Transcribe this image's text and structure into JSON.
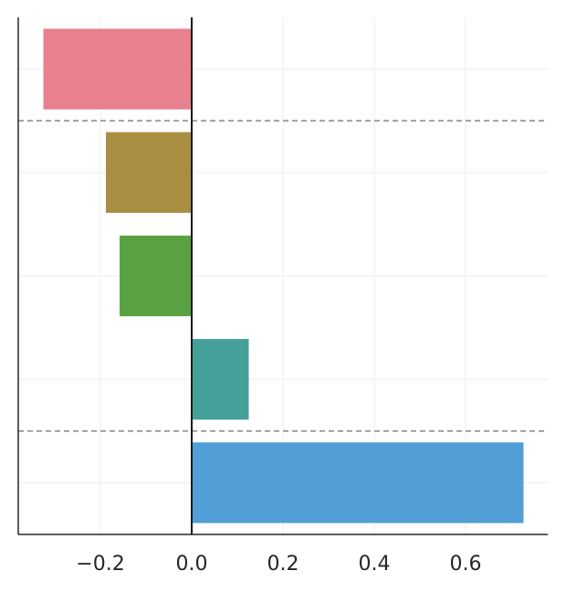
{
  "chart_data": {
    "type": "bar",
    "orientation": "horizontal",
    "title": "",
    "xlabel": "",
    "ylabel": "",
    "xlim": [
      -0.38,
      0.78
    ],
    "x_ticks": [
      -0.2,
      0.0,
      0.2,
      0.4,
      0.6
    ],
    "x_tick_labels": [
      "−0.2",
      "0.0",
      "0.2",
      "0.4",
      "0.6"
    ],
    "grid": true,
    "zero_line": true,
    "separator_lines_after_bar_index": [
      0,
      3
    ],
    "bars": [
      {
        "value": -0.325,
        "color": "#e8808f"
      },
      {
        "value": -0.188,
        "color": "#a98d41"
      },
      {
        "value": -0.158,
        "color": "#5aa141"
      },
      {
        "value": 0.125,
        "color": "#45a099"
      },
      {
        "value": 0.727,
        "color": "#519fd6"
      }
    ]
  }
}
